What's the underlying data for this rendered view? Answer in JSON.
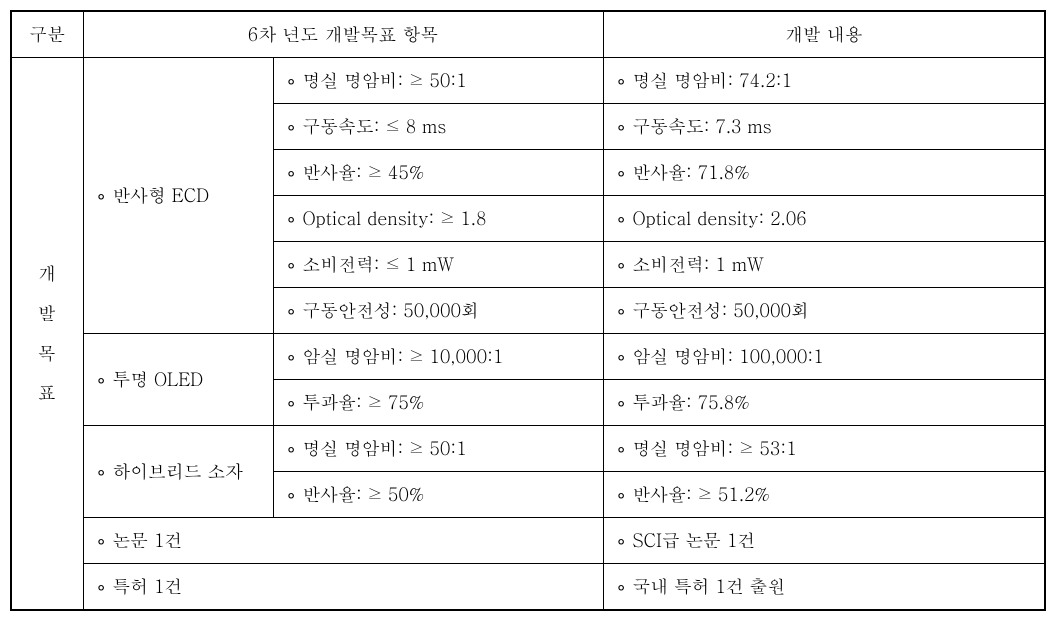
{
  "header": {
    "col1": "구분",
    "col2": "6차 년도 개발목표 항목",
    "col3": "개발 내용"
  },
  "rowLabel": "개\n발\n목\n표",
  "groups": [
    {
      "name": "∘ 반사형 ECD",
      "rows": [
        {
          "goal": "∘ 명실 명암비: ≥ 50:1",
          "result": "∘ 명실 명암비: 74.2:1"
        },
        {
          "goal": "∘ 구동속도: ≤ 8 ms",
          "result": "∘ 구동속도: 7.3 ms"
        },
        {
          "goal": "∘ 반사율: ≥ 45%",
          "result": "∘ 반사율: 71.8%"
        },
        {
          "goal": "∘ Optical density: ≥ 1.8",
          "result": "∘ Optical density: 2.06"
        },
        {
          "goal": "∘ 소비전력: ≤ 1 mW",
          "result": "∘ 소비전력: 1 mW"
        },
        {
          "goal": "∘ 구동안전성: 50,000회",
          "result": "∘ 구동안전성: 50,000회"
        }
      ]
    },
    {
      "name": "∘ 투명 OLED",
      "rows": [
        {
          "goal": "∘ 암실 명암비: ≥ 10,000:1",
          "result": "∘ 암실 명암비: 100,000:1"
        },
        {
          "goal": "∘ 투과율: ≥ 75%",
          "result": "∘ 투과율: 75.8%"
        }
      ]
    },
    {
      "name": "∘ 하이브리드 소자",
      "rows": [
        {
          "goal": "∘ 명실 명암비: ≥ 50:1",
          "result": "∘ 명실 명암비: ≥ 53:1"
        },
        {
          "goal": "∘ 반사율: ≥ 50%",
          "result": "∘ 반사율: ≥ 51.2%"
        }
      ]
    }
  ],
  "extra": [
    {
      "goal": "∘ 논문 1건",
      "result": "∘ SCI급 논문 1건"
    },
    {
      "goal": "∘ 특허 1건",
      "result": "∘ 국내 특허 1건 출원"
    }
  ],
  "style": {
    "font_size": 18,
    "border_color": "#000000",
    "background": "#ffffff",
    "text_color": "#000000"
  }
}
